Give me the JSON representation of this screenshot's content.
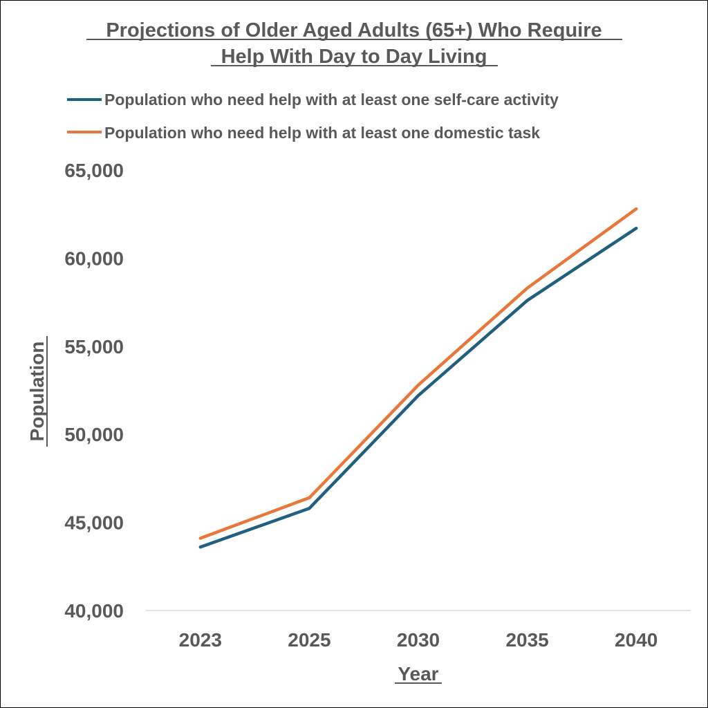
{
  "chart_data": {
    "type": "line",
    "title_lines": [
      "Projections of Older Aged Adults (65+) Who Require",
      "Help With Day to Day Living"
    ],
    "xlabel": "Year",
    "ylabel": "Population",
    "categories": [
      "2023",
      "2025",
      "2030",
      "2035",
      "2040"
    ],
    "y_ticks": [
      "40,000",
      "45,000",
      "50,000",
      "55,000",
      "60,000",
      "65,000"
    ],
    "ylim": [
      40000,
      65000
    ],
    "grid": false,
    "legend_position": "top",
    "series": [
      {
        "name": "Population who need help with at least one self-care activity",
        "color": "#1f5f7f",
        "values": [
          43600,
          45800,
          52200,
          57600,
          61700
        ]
      },
      {
        "name": "Population who need help with at least one domestic task",
        "color": "#e8773b",
        "values": [
          44100,
          46400,
          52800,
          58300,
          62800
        ]
      }
    ]
  }
}
